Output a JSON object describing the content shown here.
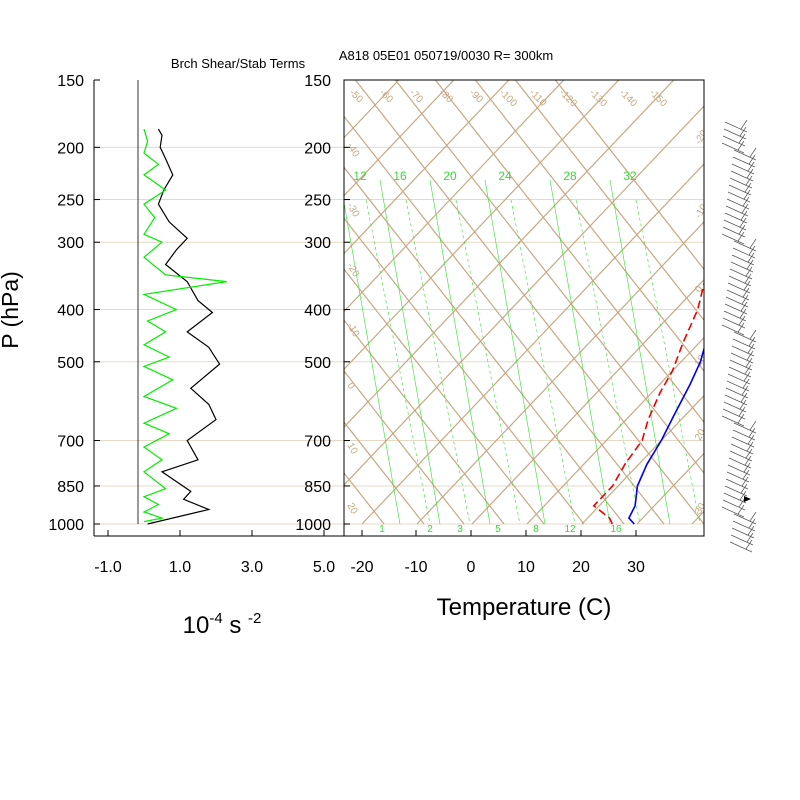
{
  "header": {
    "left_title": "Brch Shear/Stab Terms",
    "main_title": "A818 05E01 050719/0030 R= 300km"
  },
  "y_axis": {
    "label": "P (hPa)",
    "pressure_levels": [
      150,
      200,
      250,
      300,
      400,
      500,
      700,
      850,
      1000
    ],
    "tick_labels": [
      "150",
      "200",
      "250",
      "300",
      "400",
      "500",
      "700",
      "850",
      "1000"
    ]
  },
  "left_axis": {
    "tick_labels": [
      "-1.0",
      "1.0",
      "3.0",
      "5.0"
    ],
    "tick_values": [
      -1.0,
      1.0,
      3.0,
      5.0
    ],
    "unit_base": "10",
    "unit_exp1": "-4",
    "unit_mid": " s ",
    "unit_exp2": "-2"
  },
  "skewt_axis": {
    "xlabel": "Temperature (C)",
    "tick_labels": [
      "-20",
      "-10",
      "0",
      "10",
      "20",
      "30"
    ],
    "tick_values": [
      -20,
      -10,
      0,
      10,
      20,
      30
    ],
    "mixing_ratio_labels": [
      "12",
      "16",
      "20",
      "24",
      "28",
      "32"
    ],
    "bottom_mixing_labels": [
      "1",
      "2",
      "3",
      "5",
      "8",
      "12",
      "16"
    ],
    "isotherm_labels_top": [
      "-50",
      "-60",
      "-70",
      "-80",
      "-90",
      "-100",
      "-110",
      "-120",
      "-130",
      "-140",
      "-150"
    ],
    "side_labels_left": [
      "-40",
      "-30",
      "-20",
      "-10",
      "0",
      "10",
      "20"
    ],
    "side_labels_right": [
      "-20",
      "-10",
      "0",
      "10",
      "20",
      "30"
    ]
  },
  "colors": {
    "temperature": "#0000ee",
    "dewpoint": "#ee0000",
    "shear_term": "#000000",
    "stability_term": "#00ee00",
    "grid": "#c8a882",
    "mixing_ratio": "#33dd33"
  },
  "chart_data": [
    {
      "type": "line",
      "title": "Brch Shear/Stab Terms",
      "ylabel": "P (hPa)",
      "xlim": [
        -1.0,
        5.0
      ],
      "ylim": [
        1000,
        150
      ],
      "series": [
        {
          "color": "#000000",
          "points": [
            [
              0.4,
              185
            ],
            [
              0.5,
              190
            ],
            [
              0.45,
              200
            ],
            [
              0.6,
              210
            ],
            [
              0.8,
              225
            ],
            [
              0.55,
              240
            ],
            [
              0.4,
              255
            ],
            [
              0.7,
              275
            ],
            [
              1.2,
              295
            ],
            [
              0.9,
              310
            ],
            [
              0.6,
              330
            ],
            [
              1.2,
              355
            ],
            [
              1.5,
              385
            ],
            [
              1.9,
              405
            ],
            [
              1.2,
              440
            ],
            [
              1.8,
              470
            ],
            [
              2.1,
              505
            ],
            [
              1.3,
              560
            ],
            [
              1.8,
              600
            ],
            [
              2.0,
              640
            ],
            [
              1.2,
              700
            ],
            [
              1.5,
              760
            ],
            [
              0.5,
              800
            ],
            [
              1.3,
              870
            ],
            [
              1.1,
              900
            ],
            [
              1.8,
              940
            ],
            [
              0.1,
              1000
            ]
          ]
        },
        {
          "color": "#00ee00",
          "points": [
            [
              0.0,
              185
            ],
            [
              0.1,
              195
            ],
            [
              0.0,
              205
            ],
            [
              0.4,
              215
            ],
            [
              0.0,
              225
            ],
            [
              0.6,
              240
            ],
            [
              0.0,
              255
            ],
            [
              0.3,
              270
            ],
            [
              0.0,
              290
            ],
            [
              0.5,
              300
            ],
            [
              0.0,
              320
            ],
            [
              0.6,
              345
            ],
            [
              2.3,
              355
            ],
            [
              0.0,
              375
            ],
            [
              0.9,
              400
            ],
            [
              0.1,
              420
            ],
            [
              0.6,
              440
            ],
            [
              0.0,
              465
            ],
            [
              0.7,
              490
            ],
            [
              0.0,
              510
            ],
            [
              0.8,
              540
            ],
            [
              0.0,
              580
            ],
            [
              0.9,
              610
            ],
            [
              0.0,
              650
            ],
            [
              0.7,
              680
            ],
            [
              0.0,
              720
            ],
            [
              0.5,
              760
            ],
            [
              0.0,
              800
            ],
            [
              0.6,
              860
            ],
            [
              0.0,
              890
            ],
            [
              0.4,
              920
            ],
            [
              0.0,
              950
            ],
            [
              0.5,
              975
            ],
            [
              0.0,
              990
            ]
          ]
        }
      ]
    },
    {
      "type": "line",
      "xlabel": "Temperature (C)",
      "title": "A818 05E01 050719/0030 R= 300km",
      "ylim": [
        1000,
        150
      ],
      "series": [
        {
          "color": "#0000ee",
          "points": [
            [
              29.5,
              1000
            ],
            [
              27.5,
              975
            ],
            [
              26.5,
              925
            ],
            [
              23.5,
              850
            ],
            [
              21.5,
              775
            ],
            [
              20.0,
              700
            ],
            [
              18.0,
              630
            ],
            [
              15.5,
              550
            ],
            [
              13.5,
              500
            ],
            [
              10.5,
              450
            ],
            [
              7.5,
              400
            ],
            [
              3.5,
              350
            ],
            [
              -1.5,
              300
            ],
            [
              -7.5,
              250
            ],
            [
              -15.5,
              200
            ],
            [
              -27.0,
              170
            ]
          ]
        },
        {
          "color": "#ee0000",
          "points": [
            [
              25.5,
              1000
            ],
            [
              24.0,
              975
            ],
            [
              19.0,
              925
            ],
            [
              19.0,
              850
            ],
            [
              17.5,
              775
            ],
            [
              16.5,
              700
            ],
            [
              14.0,
              640
            ],
            [
              11.5,
              570
            ],
            [
              10.0,
              520
            ],
            [
              7.0,
              460
            ],
            [
              4.0,
              400
            ],
            [
              0.0,
              350
            ],
            [
              -4.5,
              300
            ],
            [
              -11.5,
              250
            ],
            [
              -17.0,
              215
            ],
            [
              -20.5,
              195
            ]
          ]
        }
      ]
    }
  ]
}
